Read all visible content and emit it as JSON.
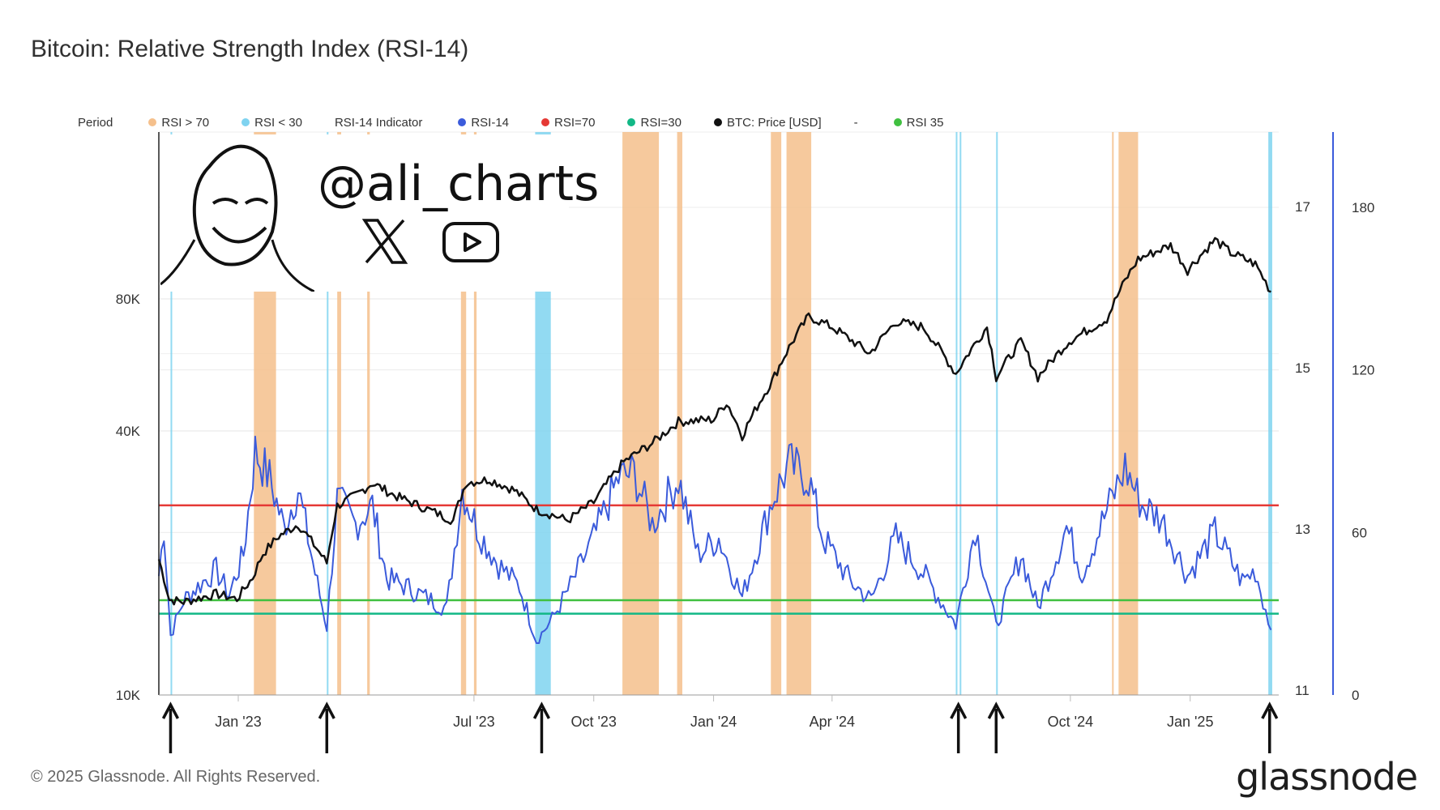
{
  "title": "Bitcoin: Relative Strength Index (RSI-14)",
  "legend": [
    {
      "label": "Period",
      "color": null
    },
    {
      "label": "RSI > 70",
      "color": "#f5c08c"
    },
    {
      "label": "RSI < 30",
      "color": "#7fd3f0"
    },
    {
      "label": "RSI-14 Indicator",
      "color": null
    },
    {
      "label": "RSI-14",
      "color": "#3b5bdb"
    },
    {
      "label": "RSI=70",
      "color": "#e53935"
    },
    {
      "label": "RSI=30",
      "color": "#12b886"
    },
    {
      "label": "BTC: Price [USD]",
      "color": "#111111"
    },
    {
      "label": "-",
      "color": null
    },
    {
      "label": "RSI 35",
      "color": "#40c040"
    }
  ],
  "watermark": {
    "handle": "@ali_charts",
    "icons": [
      "x-logo-icon",
      "youtube-icon",
      "meme-face-icon"
    ]
  },
  "footer": "© 2025 Glassnode. All Rights Reserved.",
  "brand": "glassnode",
  "chart_data": {
    "type": "line",
    "x_ticks": [
      "Jan '23",
      "Jul '23",
      "Oct '23",
      "Jan '24",
      "Apr '24",
      "Oct '24",
      "Jan '25"
    ],
    "x_range": [
      "2022-11-01",
      "2025-03-10"
    ],
    "left_axis": {
      "label": "",
      "scale": "log",
      "ticks": [
        "10K",
        "40K",
        "80K"
      ],
      "tick_values": [
        10000,
        40000,
        80000
      ]
    },
    "right_axis_1": {
      "ticks": [
        "11",
        "13",
        "15",
        "17"
      ]
    },
    "right_axis_2": {
      "ticks": [
        "0",
        "60",
        "120",
        "180"
      ],
      "tick_values": [
        0,
        60,
        120,
        180
      ]
    },
    "series": [
      {
        "name": "BTC: Price [USD]",
        "color": "#111111",
        "axis": "left",
        "points": [
          [
            "2022-11-01",
            20400
          ],
          [
            "2022-11-09",
            16500
          ],
          [
            "2022-11-20",
            16300
          ],
          [
            "2022-12-15",
            17000
          ],
          [
            "2022-12-31",
            16550
          ],
          [
            "2023-01-12",
            18500
          ],
          [
            "2023-01-20",
            21000
          ],
          [
            "2023-02-01",
            23000
          ],
          [
            "2023-02-16",
            24500
          ],
          [
            "2023-03-10",
            20000
          ],
          [
            "2023-03-18",
            27000
          ],
          [
            "2023-04-01",
            28500
          ],
          [
            "2023-04-14",
            30400
          ],
          [
            "2023-05-01",
            28500
          ],
          [
            "2023-05-20",
            27000
          ],
          [
            "2023-06-15",
            25000
          ],
          [
            "2023-06-25",
            30500
          ],
          [
            "2023-07-13",
            31000
          ],
          [
            "2023-08-01",
            29300
          ],
          [
            "2023-08-18",
            26500
          ],
          [
            "2023-09-11",
            25000
          ],
          [
            "2023-10-01",
            27500
          ],
          [
            "2023-10-24",
            34000
          ],
          [
            "2023-11-15",
            37500
          ],
          [
            "2023-12-05",
            42000
          ],
          [
            "2024-01-01",
            42500
          ],
          [
            "2024-01-11",
            46500
          ],
          [
            "2024-01-23",
            39000
          ],
          [
            "2024-02-15",
            52000
          ],
          [
            "2024-02-28",
            62000
          ],
          [
            "2024-03-14",
            73000
          ],
          [
            "2024-04-01",
            69000
          ],
          [
            "2024-04-30",
            60000
          ],
          [
            "2024-05-20",
            71000
          ],
          [
            "2024-06-10",
            69000
          ],
          [
            "2024-07-05",
            54000
          ],
          [
            "2024-07-29",
            69000
          ],
          [
            "2024-08-05",
            53000
          ],
          [
            "2024-08-24",
            64000
          ],
          [
            "2024-09-06",
            53000
          ],
          [
            "2024-09-30",
            64000
          ],
          [
            "2024-10-29",
            72000
          ],
          [
            "2024-11-12",
            88000
          ],
          [
            "2024-11-22",
            98500
          ],
          [
            "2024-12-17",
            106000
          ],
          [
            "2024-12-30",
            93000
          ],
          [
            "2025-01-20",
            109000
          ],
          [
            "2025-02-01",
            102000
          ],
          [
            "2025-02-20",
            96000
          ],
          [
            "2025-03-04",
            83000
          ]
        ]
      },
      {
        "name": "RSI-14",
        "color": "#3b5bdb",
        "axis": "right",
        "points": [
          [
            "2022-11-01",
            44
          ],
          [
            "2022-11-05",
            62
          ],
          [
            "2022-11-10",
            22
          ],
          [
            "2022-11-20",
            35
          ],
          [
            "2022-12-01",
            40
          ],
          [
            "2022-12-15",
            46
          ],
          [
            "2022-12-25",
            37
          ],
          [
            "2023-01-05",
            52
          ],
          [
            "2023-01-14",
            90
          ],
          [
            "2023-01-25",
            80
          ],
          [
            "2023-02-05",
            62
          ],
          [
            "2023-02-16",
            76
          ],
          [
            "2023-03-01",
            45
          ],
          [
            "2023-03-10",
            25
          ],
          [
            "2023-03-18",
            72
          ],
          [
            "2023-04-01",
            63
          ],
          [
            "2023-04-14",
            70
          ],
          [
            "2023-04-25",
            43
          ],
          [
            "2023-05-10",
            40
          ],
          [
            "2023-05-25",
            36
          ],
          [
            "2023-06-10",
            32
          ],
          [
            "2023-06-22",
            76
          ],
          [
            "2023-07-05",
            60
          ],
          [
            "2023-07-20",
            48
          ],
          [
            "2023-08-05",
            40
          ],
          [
            "2023-08-18",
            20
          ],
          [
            "2023-08-30",
            28
          ],
          [
            "2023-09-15",
            42
          ],
          [
            "2023-10-01",
            58
          ],
          [
            "2023-10-20",
            80
          ],
          [
            "2023-11-01",
            82
          ],
          [
            "2023-11-15",
            63
          ],
          [
            "2023-12-05",
            80
          ],
          [
            "2023-12-20",
            52
          ],
          [
            "2024-01-05",
            58
          ],
          [
            "2024-01-23",
            36
          ],
          [
            "2024-02-15",
            72
          ],
          [
            "2024-02-28",
            85
          ],
          [
            "2024-03-14",
            80
          ],
          [
            "2024-03-25",
            58
          ],
          [
            "2024-04-15",
            42
          ],
          [
            "2024-05-01",
            35
          ],
          [
            "2024-05-20",
            58
          ],
          [
            "2024-06-10",
            45
          ],
          [
            "2024-07-05",
            26
          ],
          [
            "2024-07-20",
            62
          ],
          [
            "2024-08-05",
            25
          ],
          [
            "2024-08-24",
            52
          ],
          [
            "2024-09-06",
            32
          ],
          [
            "2024-09-28",
            62
          ],
          [
            "2024-10-10",
            45
          ],
          [
            "2024-10-29",
            68
          ],
          [
            "2024-11-12",
            84
          ],
          [
            "2024-11-25",
            70
          ],
          [
            "2024-12-10",
            65
          ],
          [
            "2024-12-30",
            44
          ],
          [
            "2025-01-20",
            60
          ],
          [
            "2025-02-10",
            42
          ],
          [
            "2025-02-20",
            46
          ],
          [
            "2025-03-04",
            24
          ]
        ]
      }
    ],
    "reference_lines": [
      {
        "name": "RSI=70",
        "value": 70,
        "color": "#e53935"
      },
      {
        "name": "RSI 35",
        "value": 35,
        "color": "#40c040"
      },
      {
        "name": "RSI=30",
        "value": 30,
        "color": "#12b886"
      }
    ],
    "shaded_periods": {
      "RSI > 70": {
        "color": "#f5c08c",
        "ranges": [
          [
            "2023-01-13",
            "2023-01-30"
          ],
          [
            "2023-03-18",
            "2023-03-21"
          ],
          [
            "2023-04-10",
            "2023-04-12"
          ],
          [
            "2023-06-21",
            "2023-06-25"
          ],
          [
            "2023-07-01",
            "2023-07-03"
          ],
          [
            "2023-10-23",
            "2023-11-20"
          ],
          [
            "2023-12-04",
            "2023-12-08"
          ],
          [
            "2024-02-14",
            "2024-02-22"
          ],
          [
            "2024-02-26",
            "2024-03-16"
          ],
          [
            "2024-11-02",
            "2024-11-03"
          ],
          [
            "2024-11-07",
            "2024-11-22"
          ]
        ]
      },
      "RSI < 30": {
        "color": "#7fd3f0",
        "ranges": [
          [
            "2022-11-10",
            "2022-11-11"
          ],
          [
            "2023-03-10",
            "2023-03-11"
          ],
          [
            "2023-08-17",
            "2023-08-29"
          ],
          [
            "2024-07-05",
            "2024-07-06"
          ],
          [
            "2024-07-08",
            "2024-07-09"
          ],
          [
            "2024-08-05",
            "2024-08-06"
          ],
          [
            "2025-03-02",
            "2025-03-05"
          ]
        ]
      }
    },
    "annotations": {
      "arrows_at": [
        "2022-11-10",
        "2023-03-10",
        "2023-08-22",
        "2024-07-07",
        "2024-08-05",
        "2025-03-03"
      ]
    },
    "grid": true
  }
}
